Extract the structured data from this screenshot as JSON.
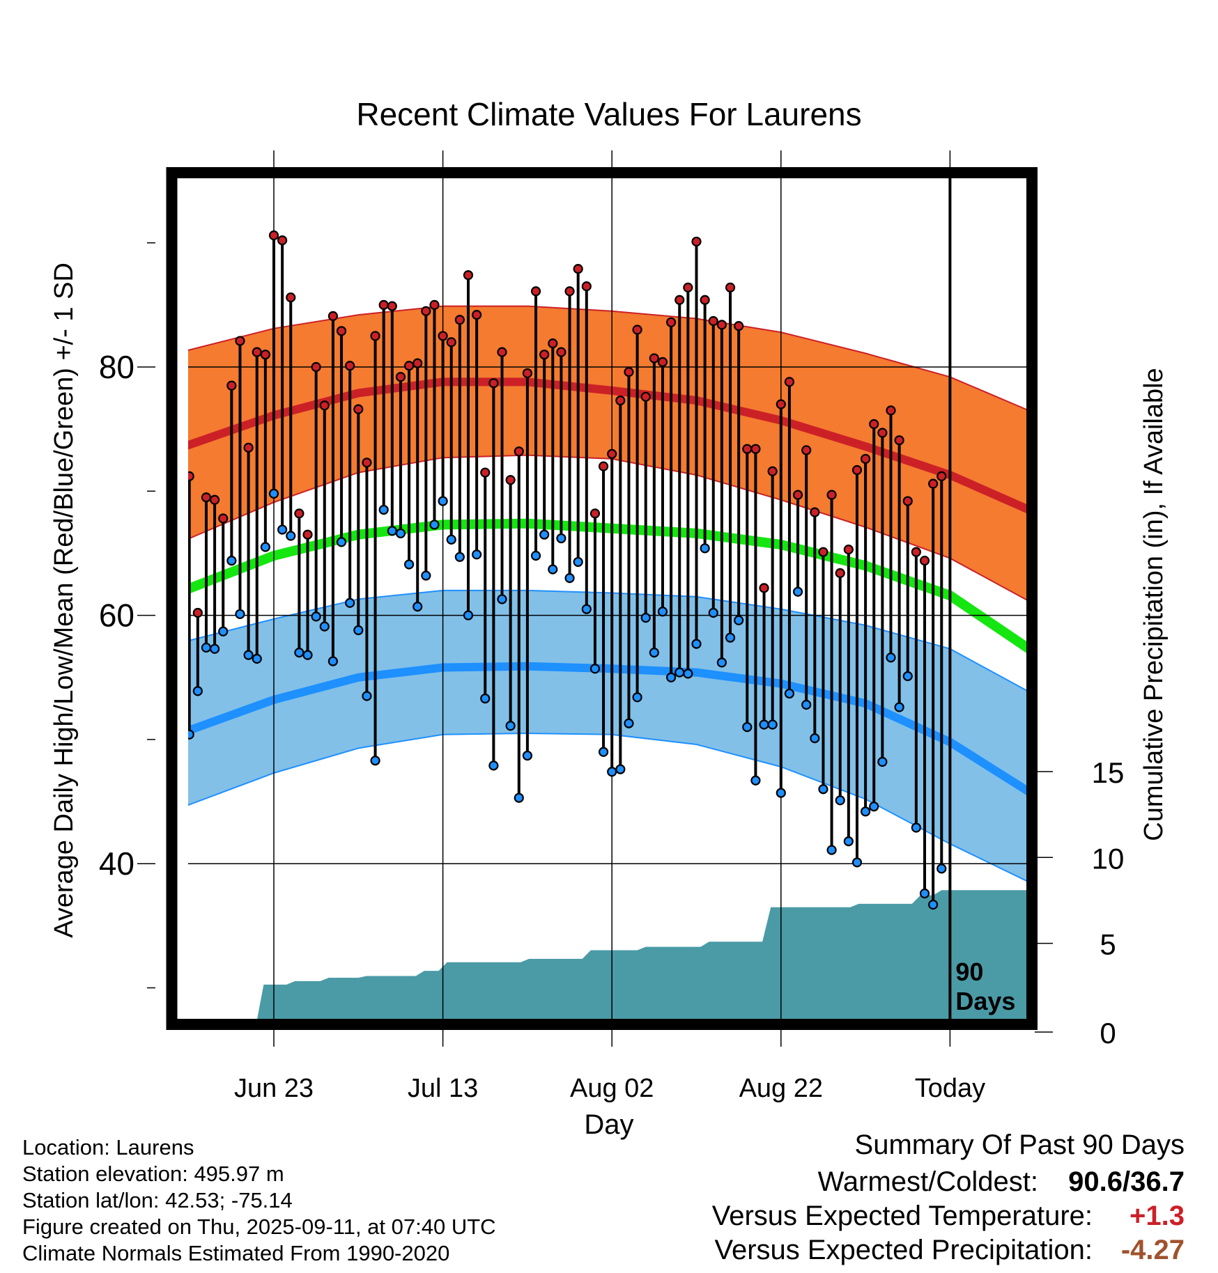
{
  "chart_data": {
    "type": "line",
    "title": "Recent Climate Values For Laurens",
    "xlabel": "Day",
    "ylabel": "Average Daily High/Low/Mean (Red/Blue/Green) +/- 1 SD",
    "y2label": "Cumulative Precipitation (in), If Available",
    "xlim": [
      -11,
      90
    ],
    "ylim": [
      27,
      95
    ],
    "y2lim": [
      0,
      15
    ],
    "y_ticks": [
      40,
      60,
      80
    ],
    "y_minor_ticks": [
      30,
      50,
      70,
      90
    ],
    "y2_ticks": [
      0,
      5,
      10,
      15
    ],
    "x_ticks": [
      {
        "x": 0,
        "label": "Jun 23"
      },
      {
        "x": 20,
        "label": "Jul 13"
      },
      {
        "x": 40,
        "label": "Aug 02"
      },
      {
        "x": 60,
        "label": "Aug 22"
      },
      {
        "x": 80,
        "label": "Today"
      }
    ],
    "grid": true,
    "marker_label": "90\nDays",
    "marker_x": 80,
    "colors": {
      "high_band": "#f47b30",
      "high_line": "#cc2027",
      "low_band": "#82c0e8",
      "low_line": "#1e90ff",
      "mean_line": "#15e610",
      "precip_fill": "#4a9ba6",
      "high_dot": "#cc2027",
      "low_dot": "#1e90ff",
      "pos_anomaly": "#cc2027",
      "precip_anomaly": "#a0522d"
    },
    "normals": {
      "x": [
        -11,
        0,
        10,
        20,
        30,
        40,
        50,
        60,
        70,
        80,
        90
      ],
      "high_mean": [
        73.5,
        76.1,
        77.9,
        78.8,
        78.8,
        78.1,
        77.3,
        75.7,
        73.6,
        71.3,
        68.3
      ],
      "high_upper": [
        81.2,
        83.1,
        84.2,
        84.9,
        84.9,
        84.5,
        83.9,
        82.8,
        81.1,
        79.2,
        76.3
      ],
      "high_lower": [
        65.9,
        69.1,
        71.5,
        72.7,
        72.9,
        72.6,
        71.3,
        69.3,
        67.1,
        64.6,
        60.9
      ],
      "mean": [
        61.9,
        64.8,
        66.5,
        67.3,
        67.4,
        67.0,
        66.6,
        65.7,
        64.0,
        61.6,
        57.0
      ],
      "low_mean": [
        50.5,
        53.2,
        55.0,
        55.8,
        55.9,
        55.7,
        55.4,
        54.5,
        52.9,
        49.8,
        45.5
      ],
      "low_upper": [
        57.8,
        59.7,
        61.3,
        62.0,
        62.0,
        61.8,
        61.5,
        60.5,
        59.2,
        57.3,
        53.6
      ],
      "low_lower": [
        44.5,
        47.3,
        49.3,
        50.4,
        50.5,
        50.4,
        49.6,
        47.8,
        45.2,
        41.6,
        38.3
      ]
    },
    "daily": {
      "x_start": -10,
      "high": [
        71.2,
        60.2,
        69.5,
        69.3,
        67.8,
        78.5,
        82.1,
        73.5,
        81.2,
        81.0,
        90.6,
        90.2,
        85.6,
        68.2,
        66.5,
        80.0,
        76.9,
        84.1,
        82.9,
        80.1,
        76.6,
        72.3,
        82.5,
        85.0,
        84.9,
        79.2,
        80.1,
        80.3,
        84.5,
        85.0,
        82.5,
        82.0,
        83.8,
        87.4,
        84.2,
        71.5,
        78.7,
        81.2,
        70.9,
        73.2,
        79.5,
        86.1,
        81.0,
        81.9,
        81.2,
        86.1,
        87.9,
        86.5,
        68.2,
        72.0,
        73.0,
        77.3,
        79.6,
        83.0,
        77.6,
        80.7,
        80.4,
        83.6,
        85.4,
        86.4,
        90.1,
        85.4,
        83.7,
        83.4,
        86.4,
        83.3,
        73.4,
        73.4,
        62.2,
        71.6,
        77.0,
        78.8,
        69.7,
        73.3,
        68.3,
        65.1,
        69.7,
        63.4,
        65.3,
        71.7,
        72.6,
        75.4,
        74.7,
        76.5,
        74.1,
        69.2,
        65.1,
        64.4,
        70.6,
        71.2
      ],
      "low": [
        50.4,
        53.9,
        57.4,
        57.3,
        58.7,
        64.4,
        60.1,
        56.8,
        56.5,
        65.5,
        69.8,
        66.9,
        66.4,
        57.0,
        56.8,
        59.9,
        59.1,
        56.3,
        65.9,
        61.0,
        58.8,
        53.5,
        48.3,
        68.5,
        66.8,
        66.6,
        64.1,
        60.7,
        63.2,
        67.3,
        69.2,
        66.1,
        64.7,
        60.0,
        64.9,
        53.3,
        47.9,
        61.3,
        51.1,
        45.3,
        48.7,
        64.8,
        66.5,
        63.7,
        66.2,
        63.0,
        64.3,
        60.5,
        55.7,
        49.0,
        47.4,
        47.6,
        51.3,
        53.4,
        59.8,
        57.0,
        60.3,
        55.0,
        55.4,
        55.3,
        57.7,
        65.4,
        60.2,
        56.2,
        58.2,
        59.6,
        51.0,
        46.7,
        51.2,
        51.2,
        45.7,
        53.7,
        61.9,
        52.8,
        50.1,
        46.0,
        41.1,
        45.1,
        41.8,
        40.1,
        44.2,
        44.6,
        48.2,
        56.6,
        52.6,
        55.1,
        42.9,
        37.6,
        36.7,
        39.6
      ]
    },
    "precip": {
      "x": [
        -11,
        -2.2,
        -1.2,
        1.5,
        2.5,
        5.5,
        6.5,
        10,
        11,
        16.8,
        17.8,
        19.5,
        20.5,
        29.2,
        30.2,
        36.5,
        37.5,
        43,
        44,
        50.5,
        51.5,
        57.8,
        58.8,
        68.2,
        69.2,
        75.5,
        76.5,
        78,
        79,
        80,
        90
      ],
      "y": [
        0,
        0,
        2.6,
        2.6,
        2.8,
        2.8,
        3.0,
        3.0,
        3.1,
        3.1,
        3.4,
        3.4,
        3.9,
        3.9,
        4.1,
        4.1,
        4.6,
        4.6,
        4.8,
        4.8,
        5.1,
        5.1,
        7.1,
        7.1,
        7.3,
        7.3,
        7.8,
        7.8,
        8.1,
        8.1,
        8.1
      ]
    }
  },
  "location_info": {
    "location": "Location: Laurens",
    "elevation": "Station elevation: 495.97 m",
    "latlon": "Station lat/lon: 42.53; -75.14",
    "created": "Figure created on Thu, 2025-09-11, at 07:40 UTC",
    "normals": "Climate Normals Estimated From 1990-2020"
  },
  "summary": {
    "title": "Summary Of Past 90 Days",
    "warmest_label": "Warmest/Coldest:",
    "warmest_value": "90.6/36.7",
    "temp_label": "Versus Expected Temperature:",
    "temp_value": "+1.3",
    "precip_label": "Versus Expected Precipitation:",
    "precip_value": "-4.27"
  }
}
